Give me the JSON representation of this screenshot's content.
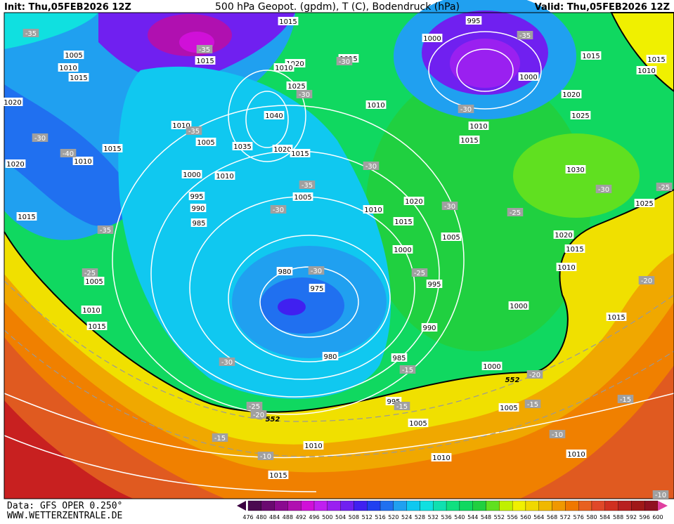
{
  "header": {
    "init": "Init: Thu,05FEB2026 12Z",
    "title": "500 hPa Geopot. (gpdm), T (C), Bodendruck (hPa)",
    "valid": "Valid: Thu,05FEB2026 12Z"
  },
  "footer": {
    "source": "Data: GFS OPER 0.250°",
    "site": "WWW.WETTERZENTRALE.DE"
  },
  "colorbar": {
    "levels": [
      476,
      480,
      484,
      488,
      492,
      496,
      500,
      504,
      508,
      512,
      516,
      520,
      524,
      528,
      532,
      536,
      540,
      544,
      548,
      552,
      556,
      560,
      564,
      568,
      572,
      576,
      580,
      584,
      588,
      592,
      596,
      600
    ],
    "colors": [
      "#4b0a50",
      "#6a0a70",
      "#8a0a90",
      "#b010b0",
      "#d010d8",
      "#c020f0",
      "#9a20f0",
      "#7020f0",
      "#4020f0",
      "#2040f0",
      "#2070f0",
      "#20a0f0",
      "#10c8f0",
      "#10e0e0",
      "#10e0b0",
      "#10e080",
      "#10d860",
      "#20d040",
      "#60e020",
      "#c0f000",
      "#f0f000",
      "#f0d800",
      "#f0b800",
      "#f09800",
      "#f07800",
      "#e86020",
      "#e04828",
      "#d03020",
      "#b82020",
      "#a01818",
      "#901020",
      "#e040a0"
    ]
  },
  "map": {
    "isobar_labels": [
      1015,
      1005,
      1010,
      1015,
      1015,
      1020,
      1010,
      1025,
      1040,
      1035,
      1020,
      1015,
      1010,
      1005,
      1015,
      1010,
      1020,
      1000,
      1010,
      995,
      990,
      985,
      1015,
      1005,
      1010,
      1015,
      980,
      975,
      980,
      985,
      990,
      995,
      1000,
      1005,
      1010,
      1015,
      1020,
      1005,
      1015,
      1010,
      995,
      1000,
      1000,
      1010,
      1015,
      1020,
      1025,
      1030,
      1015,
      1015,
      1010,
      1025,
      1020,
      1015,
      1010,
      1000,
      1015,
      1000,
      1005,
      1005,
      995,
      1010,
      1010,
      1010,
      1015,
      1020
    ],
    "temperature_labels": [
      -35,
      -35,
      -30,
      -30,
      -35,
      -30,
      -40,
      -30,
      -35,
      -30,
      -35,
      -25,
      -30,
      -25,
      -30,
      -25,
      -30,
      -35,
      -30,
      -25,
      -20,
      -15,
      -20,
      -15,
      -25,
      -20,
      -15,
      -15,
      -10,
      -10,
      -15,
      -10,
      -30
    ],
    "geopotential_labels": [
      552,
      552
    ]
  }
}
